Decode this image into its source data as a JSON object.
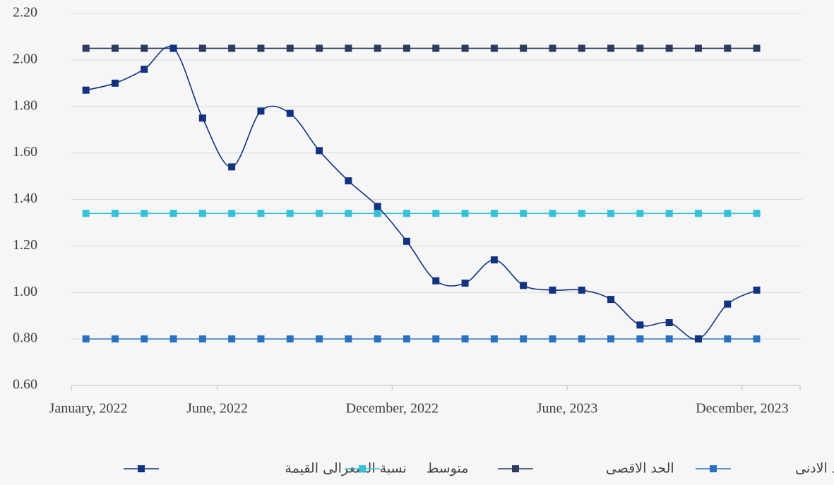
{
  "chart_data": {
    "type": "line",
    "categories": [
      "January, 2022",
      null,
      null,
      null,
      null,
      "June, 2022",
      null,
      null,
      null,
      null,
      null,
      "December, 2022",
      null,
      null,
      null,
      null,
      null,
      "June, 2023",
      null,
      null,
      null,
      null,
      null,
      "December, 2023"
    ],
    "ylim": [
      0.6,
      2.2
    ],
    "yticks": [
      {
        "value": 0.6,
        "label": "0.60"
      },
      {
        "value": 0.8,
        "label": "0.80"
      },
      {
        "value": 1.0,
        "label": "1.00"
      },
      {
        "value": 1.2,
        "label": "1.20"
      },
      {
        "value": 1.4,
        "label": "1.40"
      },
      {
        "value": 1.6,
        "label": "1.60"
      },
      {
        "value": 1.8,
        "label": "1.80"
      },
      {
        "value": 2.0,
        "label": "2.00"
      },
      {
        "value": 2.2,
        "label": "2.20"
      }
    ],
    "grid": true,
    "legend": "bottom",
    "series": [
      {
        "name": "نسبة السعرالى القيمة",
        "color": "#12327f",
        "smooth": true,
        "values": [
          1.87,
          1.9,
          1.96,
          2.05,
          1.75,
          1.54,
          1.78,
          1.77,
          1.61,
          1.48,
          1.37,
          1.22,
          1.05,
          1.04,
          1.14,
          1.03,
          1.01,
          1.01,
          0.97,
          0.86,
          0.87,
          0.8,
          0.95,
          1.01
        ]
      },
      {
        "name": "متوسط",
        "color": "#36c1d6",
        "smooth": false,
        "values": [
          1.34,
          1.34,
          1.34,
          1.34,
          1.34,
          1.34,
          1.34,
          1.34,
          1.34,
          1.34,
          1.34,
          1.34,
          1.34,
          1.34,
          1.34,
          1.34,
          1.34,
          1.34,
          1.34,
          1.34,
          1.34,
          1.34,
          1.34,
          1.34
        ]
      },
      {
        "name": "الحد الاقصى",
        "color": "#2c3b5e",
        "smooth": false,
        "values": [
          2.05,
          2.05,
          2.05,
          2.05,
          2.05,
          2.05,
          2.05,
          2.05,
          2.05,
          2.05,
          2.05,
          2.05,
          2.05,
          2.05,
          2.05,
          2.05,
          2.05,
          2.05,
          2.05,
          2.05,
          2.05,
          2.05,
          2.05,
          2.05
        ]
      },
      {
        "name": "الحد الادنى",
        "color": "#2a72c0",
        "smooth": false,
        "values": [
          0.8,
          0.8,
          0.8,
          0.8,
          0.8,
          0.8,
          0.8,
          0.8,
          0.8,
          0.8,
          0.8,
          0.8,
          0.8,
          0.8,
          0.8,
          0.8,
          0.8,
          0.8,
          0.8,
          0.8,
          0.8,
          0.8,
          0.8,
          0.8
        ]
      }
    ]
  }
}
